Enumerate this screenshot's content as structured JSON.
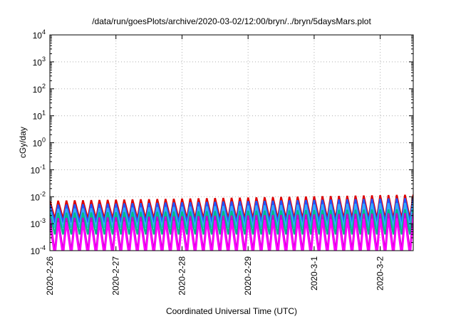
{
  "chart_data": {
    "type": "line",
    "title": "/data/run/goesPlots/archive/2020-03-02/12:00/bryn/../bryn/5daysMars.plot",
    "xlabel": "Coordinated Universal Time (UTC)",
    "ylabel": "cGy/day",
    "yscale": "log",
    "ylim": [
      0.0001,
      10000
    ],
    "xlim": [
      "2020-02-26",
      "2020-03-02T12:00"
    ],
    "grid": true,
    "x_ticks": [
      "2020-2-26",
      "2020-2-27",
      "2020-2-28",
      "2020-2-29",
      "2020-3-1",
      "2020-3-2"
    ],
    "y_ticks": [
      {
        "base": "10",
        "exp": "-4"
      },
      {
        "base": "10",
        "exp": "-3"
      },
      {
        "base": "10",
        "exp": "-2"
      },
      {
        "base": "10",
        "exp": "-1"
      },
      {
        "base": "10",
        "exp": "0"
      },
      {
        "base": "10",
        "exp": "1"
      },
      {
        "base": "10",
        "exp": "2"
      },
      {
        "base": "10",
        "exp": "3"
      },
      {
        "base": "10",
        "exp": "4"
      }
    ],
    "sawtooth_period_hours": 3,
    "series": [
      {
        "color": "#dd0000",
        "peak_start": 0.007,
        "peak_end": 0.012,
        "trough": 0.0015
      },
      {
        "color": "#2255ff",
        "peak_start": 0.005,
        "peak_end": 0.009,
        "trough": 0.0011
      },
      {
        "color": "#33aaff",
        "peak_start": 0.0035,
        "peak_end": 0.006,
        "trough": 0.0007
      },
      {
        "color": "#00bb88",
        "peak_start": 0.0025,
        "peak_end": 0.0035,
        "trough": 0.0004
      },
      {
        "color": "#cc00cc",
        "peak_start": 0.0016,
        "peak_end": 0.0025,
        "trough": 9e-05
      },
      {
        "color": "#ff00ff",
        "peak_start": 0.0011,
        "peak_end": 0.0016,
        "trough": 6e-05
      }
    ]
  }
}
